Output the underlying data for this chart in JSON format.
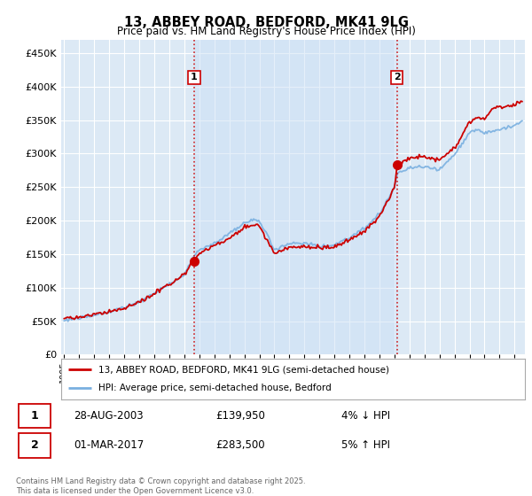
{
  "title": "13, ABBEY ROAD, BEDFORD, MK41 9LG",
  "subtitle": "Price paid vs. HM Land Registry's House Price Index (HPI)",
  "ytick_values": [
    0,
    50000,
    100000,
    150000,
    200000,
    250000,
    300000,
    350000,
    400000,
    450000
  ],
  "ylim": [
    0,
    470000
  ],
  "xlim_start": 1994.8,
  "xlim_end": 2025.7,
  "background_color": "#dce9f5",
  "shade_color": "#cce0f5",
  "grid_color": "#ffffff",
  "hpi_color": "#7ab0e0",
  "price_color": "#cc0000",
  "sale1_x": 2003.65,
  "sale1_y": 139950,
  "sale1_label": "1",
  "sale2_x": 2017.17,
  "sale2_y": 283500,
  "sale2_label": "2",
  "vline_color": "#cc0000",
  "legend_price": "13, ABBEY ROAD, BEDFORD, MK41 9LG (semi-detached house)",
  "legend_hpi": "HPI: Average price, semi-detached house, Bedford",
  "annotation1_date": "28-AUG-2003",
  "annotation1_price": "£139,950",
  "annotation1_hpi": "4% ↓ HPI",
  "annotation2_date": "01-MAR-2017",
  "annotation2_price": "£283,500",
  "annotation2_hpi": "5% ↑ HPI",
  "footer": "Contains HM Land Registry data © Crown copyright and database right 2025.\nThis data is licensed under the Open Government Licence v3.0.",
  "xtick_years": [
    1995,
    1996,
    1997,
    1998,
    1999,
    2000,
    2001,
    2002,
    2003,
    2004,
    2005,
    2006,
    2007,
    2008,
    2009,
    2010,
    2011,
    2012,
    2013,
    2014,
    2015,
    2016,
    2017,
    2018,
    2019,
    2020,
    2021,
    2022,
    2023,
    2024,
    2025
  ]
}
